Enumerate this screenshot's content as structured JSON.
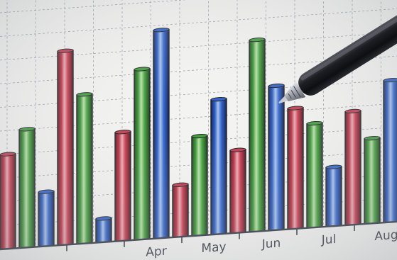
{
  "scene": {
    "subject": "photo of a bar chart on a screen with a pen pointing at it"
  },
  "chart_data": {
    "type": "bar",
    "categories": [
      "",
      "",
      "Apr",
      "May",
      "Jun",
      "Jul",
      "Aug"
    ],
    "series": [
      {
        "color": "#c0394b",
        "values": [
          40,
          82,
          46,
          22,
          35,
          51,
          48
        ]
      },
      {
        "color": "#3f9a3c",
        "values": [
          50,
          63,
          72,
          42,
          81,
          44,
          36
        ]
      },
      {
        "color": "#2f5fc4",
        "values": [
          23,
          10,
          88,
          57,
          61,
          25,
          60
        ]
      }
    ],
    "xlabel": "",
    "ylabel": "",
    "grid": true,
    "legend": "none"
  },
  "colors": {
    "grid": "#9aa0aa",
    "axis": "#2f3440",
    "pen_body": "#1c1d21",
    "pen_tip": "#b8bcc4"
  }
}
